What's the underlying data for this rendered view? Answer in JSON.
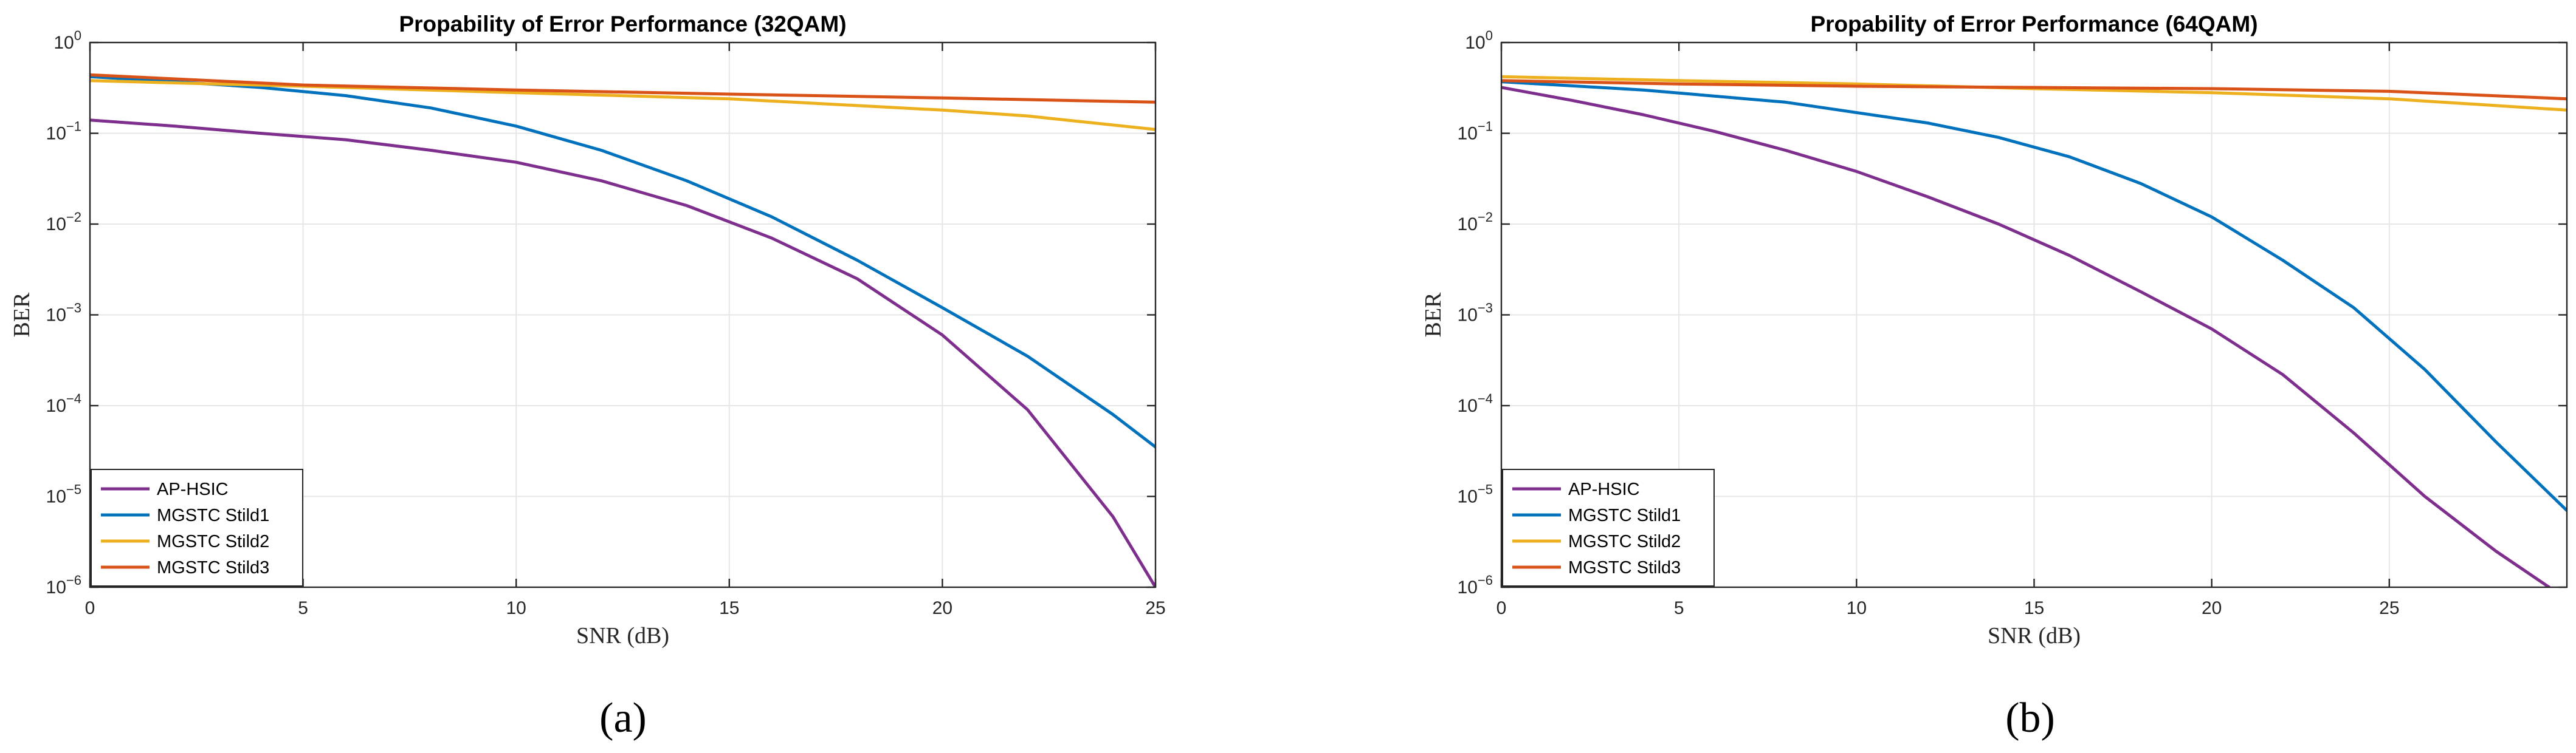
{
  "chart_data": [
    {
      "type": "line",
      "title": "Propability of Error Performance (32QAM)",
      "xlabel": "SNR (dB)",
      "ylabel": "BER",
      "yscale": "log",
      "xlim": [
        0,
        25
      ],
      "ylim": [
        1e-06,
        1
      ],
      "xticks": [
        0,
        5,
        10,
        15,
        20,
        25
      ],
      "yticks": [
        1e-06,
        1e-05,
        0.0001,
        0.001,
        0.01,
        0.1,
        1
      ],
      "grid": true,
      "legend_position": "bottom-left",
      "caption": "(a)",
      "series": [
        {
          "name": "AP-HSIC",
          "color": "#7E2F8E",
          "x": [
            0,
            2,
            4,
            6,
            8,
            10,
            12,
            14,
            16,
            18,
            20,
            22,
            24,
            25
          ],
          "y": [
            0.14,
            0.12,
            0.1,
            0.085,
            0.065,
            0.048,
            0.03,
            0.016,
            0.007,
            0.0025,
            0.0006,
            9e-05,
            6e-06,
            1e-06
          ]
        },
        {
          "name": "MGSTC Stild1",
          "color": "#0072BD",
          "x": [
            0,
            2,
            4,
            6,
            8,
            10,
            12,
            14,
            16,
            18,
            20,
            22,
            24,
            25
          ],
          "y": [
            0.42,
            0.37,
            0.32,
            0.26,
            0.19,
            0.12,
            0.065,
            0.03,
            0.012,
            0.004,
            0.0012,
            0.00035,
            8e-05,
            3.5e-05
          ]
        },
        {
          "name": "MGSTC Stild2",
          "color": "#EDB120",
          "x": [
            0,
            5,
            10,
            15,
            20,
            22,
            25
          ],
          "y": [
            0.38,
            0.33,
            0.28,
            0.24,
            0.18,
            0.155,
            0.11
          ]
        },
        {
          "name": "MGSTC Stild3",
          "color": "#D95319",
          "x": [
            0,
            5,
            10,
            15,
            20,
            25
          ],
          "y": [
            0.44,
            0.34,
            0.3,
            0.27,
            0.245,
            0.22
          ]
        }
      ]
    },
    {
      "type": "line",
      "title": "Propability of Error Performance (64QAM)",
      "xlabel": "SNR (dB)",
      "ylabel": "BER",
      "yscale": "log",
      "xlim": [
        0,
        30
      ],
      "ylim": [
        1e-06,
        1
      ],
      "xticks": [
        0,
        5,
        10,
        15,
        20,
        25
      ],
      "yticks": [
        1e-06,
        1e-05,
        0.0001,
        0.001,
        0.01,
        0.1,
        1
      ],
      "grid": true,
      "legend_position": "bottom-left",
      "caption": "(b)",
      "series": [
        {
          "name": "AP-HSIC",
          "color": "#7E2F8E",
          "x": [
            0,
            2,
            4,
            6,
            8,
            10,
            12,
            14,
            16,
            18,
            20,
            22,
            24,
            26,
            28,
            29.5
          ],
          "y": [
            0.32,
            0.23,
            0.16,
            0.105,
            0.065,
            0.038,
            0.02,
            0.01,
            0.0045,
            0.0018,
            0.0007,
            0.00022,
            5e-05,
            1e-05,
            2.5e-06,
            1e-06
          ]
        },
        {
          "name": "MGSTC Stild1",
          "color": "#0072BD",
          "x": [
            0,
            4,
            8,
            12,
            14,
            16,
            18,
            20,
            22,
            24,
            26,
            28,
            30
          ],
          "y": [
            0.37,
            0.3,
            0.22,
            0.13,
            0.09,
            0.055,
            0.028,
            0.012,
            0.004,
            0.0012,
            0.00025,
            4e-05,
            7e-06
          ]
        },
        {
          "name": "MGSTC Stild2",
          "color": "#EDB120",
          "x": [
            0,
            5,
            10,
            15,
            20,
            25,
            30
          ],
          "y": [
            0.42,
            0.38,
            0.35,
            0.31,
            0.28,
            0.24,
            0.18
          ]
        },
        {
          "name": "MGSTC Stild3",
          "color": "#D95319",
          "x": [
            0,
            5,
            10,
            15,
            20,
            25,
            30
          ],
          "y": [
            0.38,
            0.35,
            0.33,
            0.32,
            0.31,
            0.29,
            0.24
          ]
        }
      ]
    }
  ]
}
